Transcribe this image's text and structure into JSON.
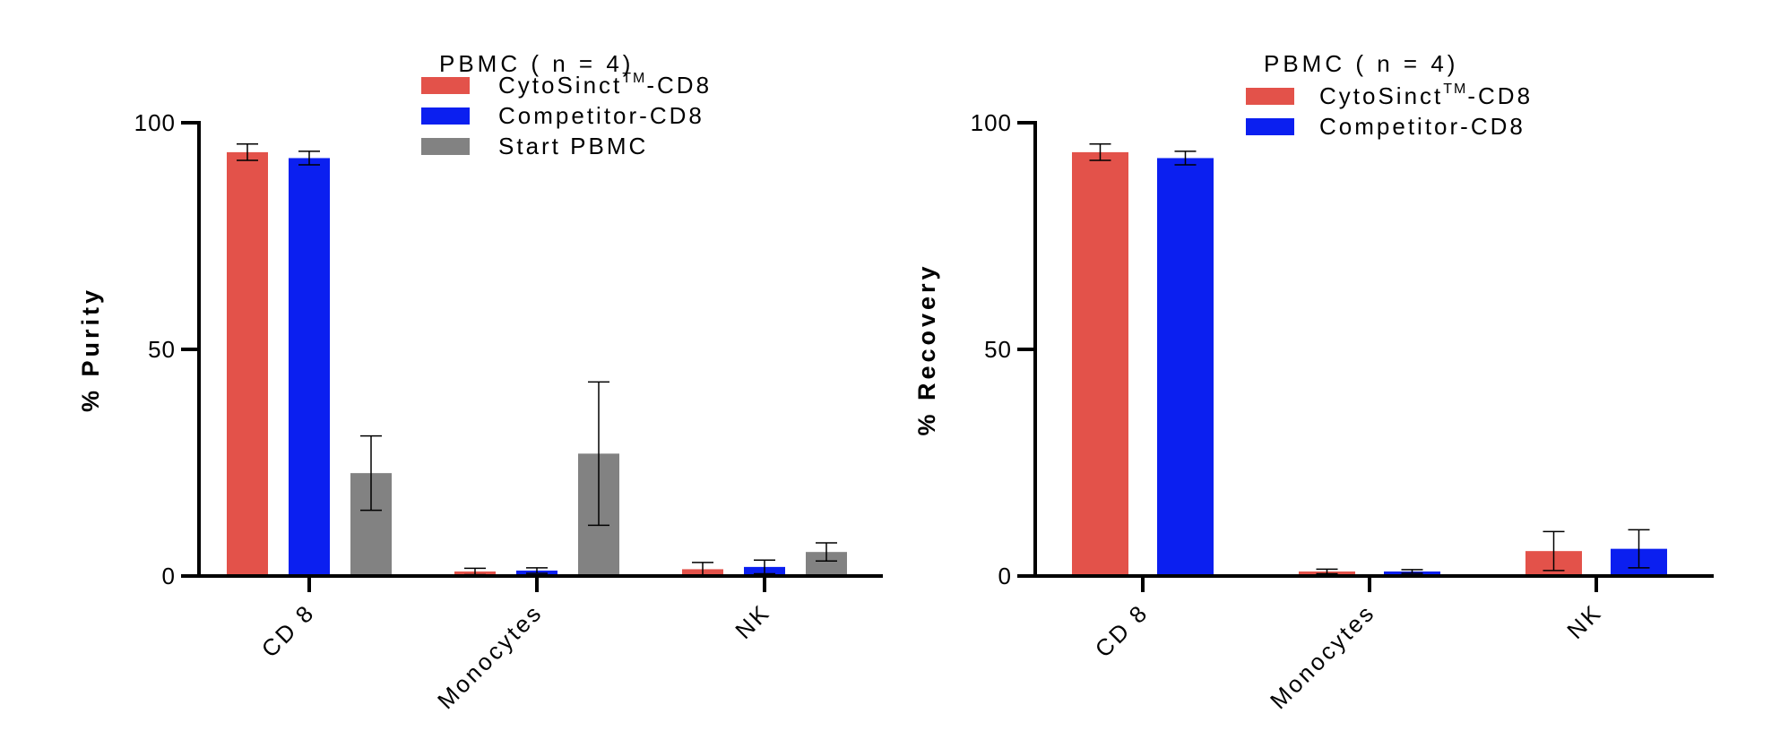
{
  "chart_data": [
    {
      "type": "bar",
      "legend_title": "PBMC ( n = 4)",
      "ylabel": "% Purity",
      "xlabel": "",
      "ylim": [
        0,
        100
      ],
      "yticks": [
        0,
        50,
        100
      ],
      "categories": [
        "CD 8",
        "Monocytes",
        "NK"
      ],
      "legend_placement": "top-center",
      "series": [
        {
          "name": "CytoSinct",
          "name_sup": "TM",
          "name_suffix": "-CD8",
          "color": "#e3524a",
          "values": [
            93.5,
            1.0,
            1.5
          ],
          "errors": [
            1.8,
            0.7,
            1.5
          ]
        },
        {
          "name": "Competitor-CD8",
          "name_sup": "",
          "name_suffix": "",
          "color": "#0b1ff0",
          "values": [
            92.2,
            1.2,
            2.0
          ],
          "errors": [
            1.5,
            0.6,
            1.5
          ]
        },
        {
          "name": "Start PBMC",
          "name_sup": "",
          "name_suffix": "",
          "color": "#828282",
          "values": [
            22.7,
            27.0,
            5.3
          ],
          "errors": [
            8.2,
            15.8,
            2.0
          ]
        }
      ]
    },
    {
      "type": "bar",
      "legend_title": "PBMC ( n = 4)",
      "ylabel": "% Recovery",
      "xlabel": "",
      "ylim": [
        0,
        100
      ],
      "yticks": [
        0,
        50,
        100
      ],
      "categories": [
        "CD 8",
        "Monocytes",
        "NK"
      ],
      "legend_placement": "top-center",
      "series": [
        {
          "name": "CytoSinct",
          "name_sup": "TM",
          "name_suffix": "-CD8",
          "color": "#e3524a",
          "values": [
            93.5,
            1.0,
            5.5
          ],
          "errors": [
            1.8,
            0.5,
            4.3
          ]
        },
        {
          "name": "Competitor-CD8",
          "name_sup": "",
          "name_suffix": "",
          "color": "#0b1ff0",
          "values": [
            92.2,
            1.0,
            6.0
          ],
          "errors": [
            1.5,
            0.4,
            4.2
          ]
        }
      ]
    }
  ]
}
